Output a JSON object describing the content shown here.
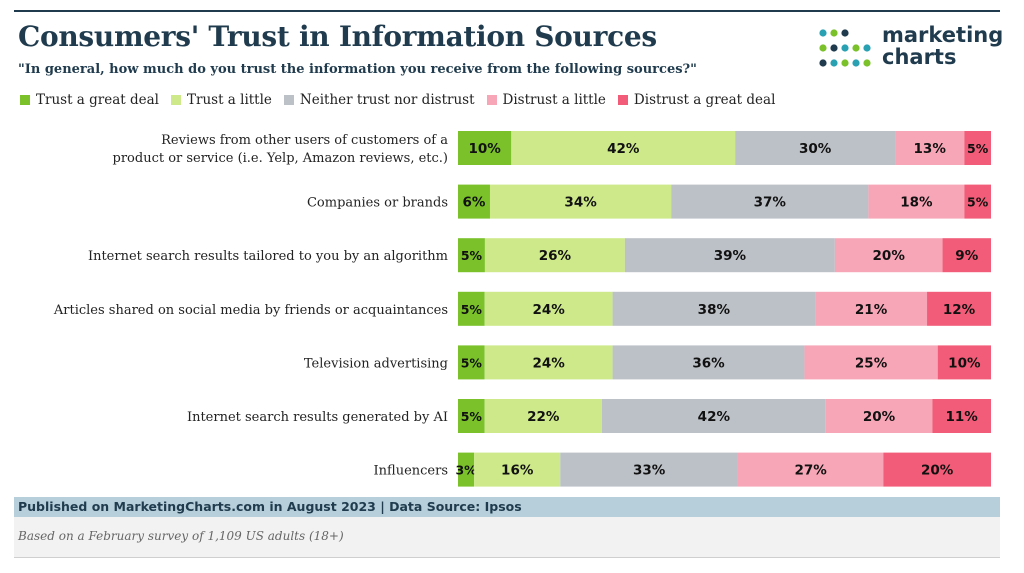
{
  "title": "Consumers' Trust in Information Sources",
  "subtitle": "\"In general, how much do you trust the information you receive from the following sources?\"",
  "logo": {
    "line1": "marketing",
    "line2": "charts"
  },
  "footer": {
    "published": "Published on MarketingCharts.com in August 2023 | Data Source: Ipsos",
    "note": "Based on a February survey of 1,109 US adults (18+)"
  },
  "colors": {
    "trust_great": "#7ac12a",
    "trust_little": "#cde98a",
    "neither": "#bcc1c7",
    "distrust_little": "#f7a6b7",
    "distrust_great": "#f25c78",
    "title": "#1f3b4d"
  },
  "chart_data": {
    "type": "bar",
    "orientation": "horizontal",
    "stacked": true,
    "percent": true,
    "legend_position": "top",
    "categories": [
      "Reviews from other users of customers of a product or service (i.e. Yelp, Amazon reviews, etc.)",
      "Companies or brands",
      "Internet search results tailored to you by an algorithm",
      "Articles shared on social media by friends or acquaintances",
      "Television advertising",
      "Internet search results generated by AI",
      "Influencers"
    ],
    "category_lines": [
      [
        "Reviews from other users of customers of a",
        "product or service (i.e. Yelp, Amazon reviews, etc.)"
      ],
      [
        "Companies or brands"
      ],
      [
        "Internet search results tailored to you by an algorithm"
      ],
      [
        "Articles shared on social media by friends or acquaintances"
      ],
      [
        "Television advertising"
      ],
      [
        "Internet search results generated by AI"
      ],
      [
        "Influencers"
      ]
    ],
    "series": [
      {
        "name": "Trust a great deal",
        "color": "#7ac12a",
        "values": [
          10,
          6,
          5,
          5,
          5,
          5,
          3
        ]
      },
      {
        "name": "Trust a little",
        "color": "#cde98a",
        "values": [
          42,
          34,
          26,
          24,
          24,
          22,
          16
        ]
      },
      {
        "name": "Neither trust nor distrust",
        "color": "#bcc1c7",
        "values": [
          30,
          37,
          39,
          38,
          36,
          42,
          33
        ]
      },
      {
        "name": "Distrust a little",
        "color": "#f7a6b7",
        "values": [
          13,
          18,
          20,
          21,
          25,
          20,
          27
        ]
      },
      {
        "name": "Distrust a great deal",
        "color": "#f25c78",
        "values": [
          5,
          5,
          9,
          12,
          10,
          11,
          20
        ]
      }
    ]
  }
}
